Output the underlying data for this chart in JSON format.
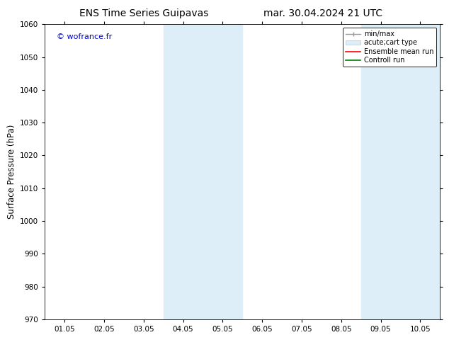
{
  "title_left": "ENS Time Series Guipavas",
  "title_right": "mar. 30.04.2024 21 UTC",
  "ylabel": "Surface Pressure (hPa)",
  "ylim": [
    970,
    1060
  ],
  "yticks": [
    970,
    980,
    990,
    1000,
    1010,
    1020,
    1030,
    1040,
    1050,
    1060
  ],
  "xlim_start": -0.5,
  "xlim_end": 9.5,
  "xtick_labels": [
    "01.05",
    "02.05",
    "03.05",
    "04.05",
    "05.05",
    "06.05",
    "07.05",
    "08.05",
    "09.05",
    "10.05"
  ],
  "xtick_positions": [
    0,
    1,
    2,
    3,
    4,
    5,
    6,
    7,
    8,
    9
  ],
  "watermark": "© wofrance.fr",
  "watermark_color": "#0000cc",
  "bg_color": "#ffffff",
  "plot_bg_color": "#ffffff",
  "shaded_regions": [
    {
      "xstart": 2.5,
      "xend": 3.5,
      "color": "#ddeef8"
    },
    {
      "xstart": 3.5,
      "xend": 4.5,
      "color": "#ddeef8"
    },
    {
      "xstart": 7.5,
      "xend": 8.5,
      "color": "#ddeef8"
    },
    {
      "xstart": 8.5,
      "xend": 9.5,
      "color": "#ddeef8"
    }
  ],
  "legend_entries": [
    {
      "label": "min/max",
      "color": "#999999"
    },
    {
      "label": "acute;cart type",
      "color": "#ddeef8"
    },
    {
      "label": "Ensemble mean run",
      "color": "#ff0000"
    },
    {
      "label": "Controll run",
      "color": "#008000"
    }
  ],
  "title_fontsize": 10,
  "tick_fontsize": 7.5,
  "ylabel_fontsize": 8.5
}
